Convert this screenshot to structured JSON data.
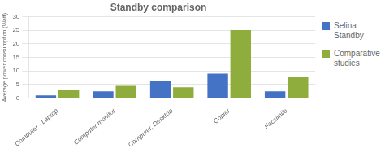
{
  "chart_data": {
    "type": "bar",
    "title": "Standby comparison",
    "ylabel": "Average power consumption (Watt)",
    "categories": [
      "Computer - Laptop",
      "Computer monitor",
      "Computer, Desktop",
      "Copier",
      "Facsimile"
    ],
    "series": [
      {
        "name": "Selina\nStandby",
        "color": "#4472C4",
        "values": [
          1.0,
          2.5,
          6.5,
          9.0,
          2.5
        ]
      },
      {
        "name": "Comparative\nstudies",
        "color": "#8fad3c",
        "values": [
          3.0,
          4.5,
          4.0,
          25.0,
          8.0
        ]
      }
    ],
    "ylim": [
      0,
      30
    ],
    "yticks": [
      0,
      5,
      10,
      15,
      20,
      25,
      30
    ],
    "grid": true,
    "legend": "upper right"
  }
}
